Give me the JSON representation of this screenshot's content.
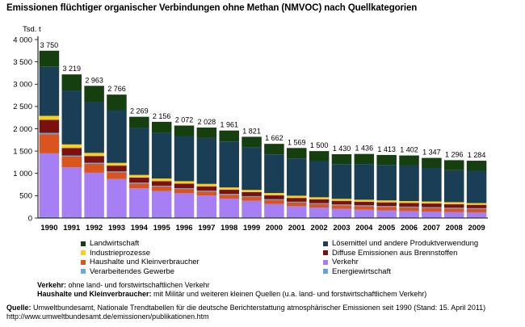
{
  "page": {
    "title": "Emissionen flüchtiger organischer Verbindungen ohne Methan (NMVOC) nach Quellkategorien",
    "notes": [
      {
        "label": "Verkehr:",
        "text": " ohne land- und forstwirtschaftlichen Verkehr"
      },
      {
        "label": "Haushalte und Kleinverbraucher:",
        "text": " mit Militär und weiteren kleinen Quellen (u.a. land- und forstwirtschaftlichem Verkehr)"
      }
    ],
    "source": {
      "label": "Quelle:",
      "text": " Umweltbundesamt, Nationale Trendtabellen für die deutsche Berichterstattung atmosphärischer Emissionen seit 1990 (Stand: 15. April 2011) http://www.umweltbundesamt.de/emissionen/publikationen.htm"
    }
  },
  "chart_data": {
    "type": "bar",
    "stacked": true,
    "ylabel": "Tsd. t",
    "ylim": [
      0,
      4000
    ],
    "yticks": [
      0,
      500,
      1000,
      1500,
      2000,
      2500,
      3000,
      3500,
      4000
    ],
    "ytick_labels": [
      "0",
      "500",
      "1 000",
      "1 500",
      "2 000",
      "2 500",
      "3 000",
      "3 500",
      "4 000"
    ],
    "grid": false,
    "legend_position": "bottom",
    "categories": [
      "1990",
      "1991",
      "1992",
      "1993",
      "1994",
      "1995",
      "1996",
      "1997",
      "1998",
      "1999",
      "2000",
      "2001",
      "2002",
      "2003",
      "2004",
      "2005",
      "2006",
      "2007",
      "2008",
      "2009"
    ],
    "totals": [
      3750,
      3219,
      2963,
      2766,
      2269,
      2156,
      2072,
      2028,
      1961,
      1821,
      1662,
      1569,
      1500,
      1430,
      1436,
      1413,
      1402,
      1347,
      1296,
      1284
    ],
    "total_labels": [
      "3 750",
      "3 219",
      "2 963",
      "2 766",
      "2 269",
      "2 156",
      "2 072",
      "2 028",
      "1 961",
      "1 821",
      "1 662",
      "1 569",
      "1 500",
      "1 430",
      "1 436",
      "1 413",
      "1 402",
      "1 347",
      "1 296",
      "1 284"
    ],
    "series": [
      {
        "name": "Verarbeitendes Gewerbe",
        "color": "#6fa8dc",
        "values": [
          20,
          15,
          15,
          15,
          15,
          15,
          15,
          15,
          15,
          15,
          15,
          15,
          15,
          15,
          15,
          15,
          15,
          15,
          15,
          15
        ]
      },
      {
        "name": "Verkehr",
        "color": "#a77ff5",
        "values": [
          1430,
          1120,
          1000,
          860,
          650,
          590,
          540,
          490,
          420,
          370,
          300,
          250,
          220,
          190,
          170,
          155,
          140,
          130,
          120,
          110
        ]
      },
      {
        "name": "Haushalte und Kleinverbraucher",
        "color": "#d9541e",
        "values": [
          430,
          240,
          200,
          150,
          110,
          100,
          95,
          90,
          85,
          85,
          85,
          80,
          80,
          80,
          80,
          80,
          80,
          80,
          75,
          75
        ]
      },
      {
        "name": "Energiewirtschaft",
        "color": "#5fa6d6",
        "values": [
          30,
          25,
          25,
          20,
          20,
          20,
          20,
          20,
          20,
          20,
          20,
          20,
          20,
          20,
          20,
          20,
          20,
          20,
          20,
          20
        ]
      },
      {
        "name": "Diffuse Emissionen aus Brennstoffen",
        "color": "#7a1010",
        "values": [
          290,
          170,
          150,
          130,
          110,
          100,
          100,
          95,
          95,
          90,
          90,
          85,
          85,
          80,
          80,
          80,
          80,
          80,
          80,
          75
        ]
      },
      {
        "name": "Industrieprozesse",
        "color": "#f5d01e",
        "values": [
          90,
          80,
          70,
          60,
          60,
          60,
          55,
          55,
          50,
          50,
          50,
          50,
          45,
          45,
          45,
          45,
          45,
          45,
          45,
          40
        ]
      },
      {
        "name": "Lösemittel und andere Produktverwendung",
        "color": "#1b3e57",
        "values": [
          1100,
          1209,
          1138,
          1181,
          1054,
          1026,
          1012,
          1028,
          1031,
          956,
          867,
          837,
          811,
          777,
          801,
          793,
          797,
          752,
          716,
          724
        ]
      },
      {
        "name": "Landwirtschaft",
        "color": "#163f10",
        "values": [
          360,
          360,
          365,
          350,
          250,
          245,
          235,
          235,
          245,
          235,
          235,
          232,
          224,
          223,
          225,
          225,
          225,
          225,
          225,
          225
        ]
      }
    ],
    "legend_order": [
      "Landwirtschaft",
      "Lösemittel und andere Produktverwendung",
      "Industrieprozesse",
      "Diffuse Emissionen aus Brennstoffen",
      "Haushalte und Kleinverbraucher",
      "Verkehr",
      "Verarbeitendes Gewerbe",
      "Energiewirtschaft"
    ]
  }
}
